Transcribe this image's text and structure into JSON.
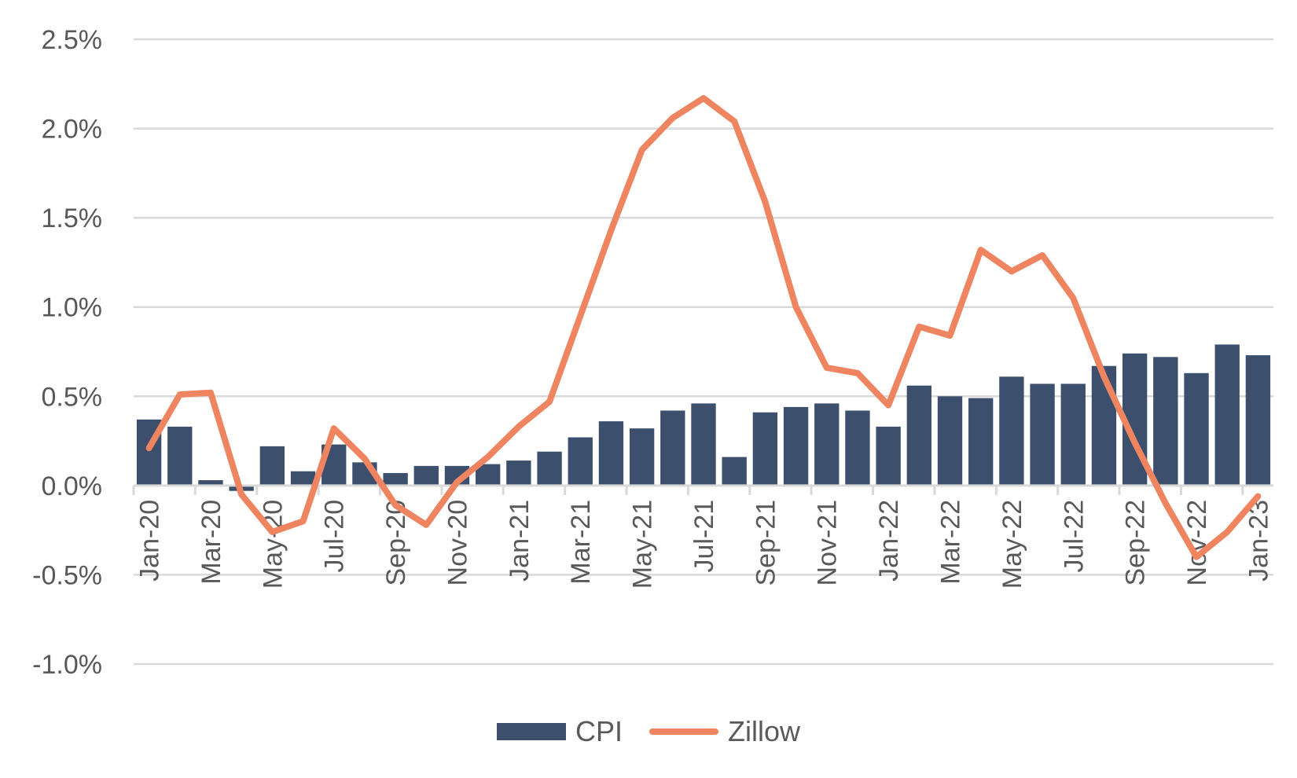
{
  "chart_data": {
    "type": "bar+line",
    "categories": [
      "Jan-20",
      "Feb-20",
      "Mar-20",
      "Apr-20",
      "May-20",
      "Jun-20",
      "Jul-20",
      "Aug-20",
      "Sep-20",
      "Oct-20",
      "Nov-20",
      "Dec-20",
      "Jan-21",
      "Feb-21",
      "Mar-21",
      "Apr-21",
      "May-21",
      "Jun-21",
      "Jul-21",
      "Aug-21",
      "Sep-21",
      "Oct-21",
      "Nov-21",
      "Dec-21",
      "Jan-22",
      "Feb-22",
      "Mar-22",
      "Apr-22",
      "May-22",
      "Jun-22",
      "Jul-22",
      "Aug-22",
      "Sep-22",
      "Oct-22",
      "Nov-22",
      "Dec-22",
      "Jan-23"
    ],
    "x_tick_labels": [
      "Jan-20",
      "Mar-20",
      "May-20",
      "Jul-20",
      "Sep-20",
      "Nov-20",
      "Jan-21",
      "Mar-21",
      "May-21",
      "Jul-21",
      "Sep-21",
      "Nov-21",
      "Jan-22",
      "Mar-22",
      "May-22",
      "Jul-22",
      "Sep-22",
      "Nov-22",
      "Jan-23"
    ],
    "y_tick_labels": [
      "2.5%",
      "2.0%",
      "1.5%",
      "1.0%",
      "0.5%",
      "0.0%",
      "-0.5%",
      "-1.0%"
    ],
    "ylim": [
      -1.0,
      2.5
    ],
    "y_unit": "%",
    "grid": true,
    "legend_position": "bottom",
    "series": [
      {
        "name": "CPI",
        "type": "bar",
        "color": "#3c4f6d",
        "values": [
          0.37,
          0.33,
          0.03,
          -0.03,
          0.22,
          0.08,
          0.23,
          0.13,
          0.07,
          0.11,
          0.11,
          0.12,
          0.14,
          0.19,
          0.27,
          0.36,
          0.32,
          0.42,
          0.46,
          0.16,
          0.41,
          0.44,
          0.46,
          0.42,
          0.33,
          0.56,
          0.5,
          0.49,
          0.61,
          0.57,
          0.57,
          0.67,
          0.74,
          0.72,
          0.63,
          0.79,
          0.73
        ]
      },
      {
        "name": "Zillow",
        "type": "line",
        "color": "#ee8460",
        "values": [
          0.21,
          0.51,
          0.52,
          -0.05,
          -0.26,
          -0.2,
          0.32,
          0.15,
          -0.11,
          -0.22,
          0.02,
          0.16,
          0.33,
          0.47,
          0.95,
          1.43,
          1.88,
          2.06,
          2.17,
          2.04,
          1.59,
          1.0,
          0.66,
          0.63,
          0.45,
          0.89,
          0.84,
          1.32,
          1.2,
          1.29,
          1.05,
          0.61,
          0.24,
          -0.1,
          -0.4,
          -0.26,
          -0.06
        ]
      }
    ]
  }
}
